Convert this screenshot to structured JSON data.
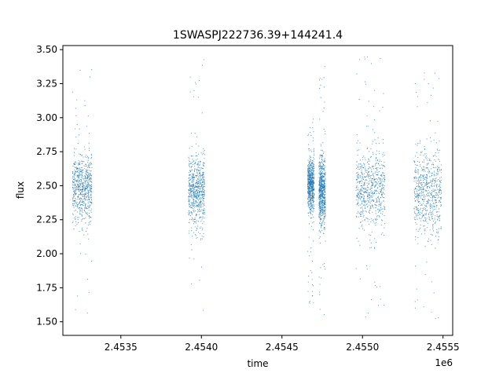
{
  "chart_data": {
    "type": "scatter",
    "title": "1SWASPJ222736.39+144241.4",
    "xlabel": "time",
    "ylabel": "flux",
    "x_offset_label": "1e6",
    "xlim": [
      2453140,
      2455560
    ],
    "ylim": [
      1.4,
      3.53
    ],
    "x_ticks": [
      {
        "value": 2453500,
        "label": "2.4535"
      },
      {
        "value": 2454000,
        "label": "2.4540"
      },
      {
        "value": 2454500,
        "label": "2.4545"
      },
      {
        "value": 2455000,
        "label": "2.4550"
      },
      {
        "value": 2455500,
        "label": "2.4555"
      }
    ],
    "y_ticks": [
      {
        "value": 1.5,
        "label": "1.50"
      },
      {
        "value": 1.75,
        "label": "1.75"
      },
      {
        "value": 2.0,
        "label": "2.00"
      },
      {
        "value": 2.25,
        "label": "2.25"
      },
      {
        "value": 2.5,
        "label": "2.50"
      },
      {
        "value": 2.75,
        "label": "2.75"
      },
      {
        "value": 3.0,
        "label": "3.00"
      },
      {
        "value": 3.25,
        "label": "3.25"
      },
      {
        "value": 3.5,
        "label": "3.50"
      }
    ],
    "grid": false,
    "legend": "none",
    "marker_color": "#1f77b4",
    "observing_seasons": [
      {
        "time_start": 2453200,
        "time_end": 2453320,
        "flux_center": 2.48,
        "flux_spread": 0.12,
        "flux_min": 1.52,
        "flux_max": 3.43
      },
      {
        "time_start": 2453920,
        "time_end": 2454020,
        "flux_center": 2.45,
        "flux_spread": 0.13,
        "flux_min": 1.58,
        "flux_max": 3.43
      },
      {
        "time_start": 2454660,
        "time_end": 2454700,
        "flux_center": 2.5,
        "flux_spread": 0.1,
        "flux_min": 1.62,
        "flux_max": 3.02
      },
      {
        "time_start": 2454730,
        "time_end": 2454770,
        "flux_center": 2.45,
        "flux_spread": 0.13,
        "flux_min": 1.5,
        "flux_max": 3.4
      },
      {
        "time_start": 2454960,
        "time_end": 2455140,
        "flux_center": 2.46,
        "flux_spread": 0.15,
        "flux_min": 1.52,
        "flux_max": 3.45
      },
      {
        "time_start": 2455320,
        "time_end": 2455490,
        "flux_center": 2.45,
        "flux_spread": 0.15,
        "flux_min": 1.5,
        "flux_max": 3.46
      }
    ]
  }
}
